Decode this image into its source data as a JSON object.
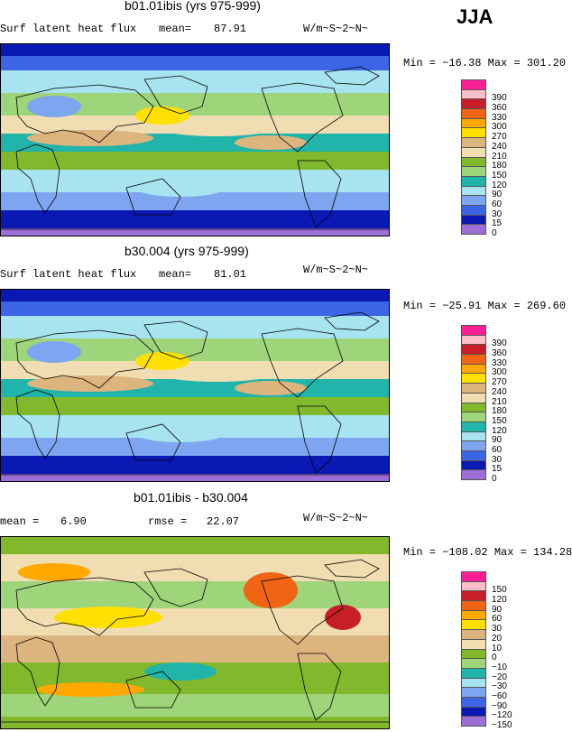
{
  "season_label": "JJA",
  "colors": {
    "abs": [
      "#9b6fd6",
      "#0a18b4",
      "#3c64e6",
      "#7ea6f0",
      "#a8e4f0",
      "#20b4aa",
      "#9ed47a",
      "#82b82c",
      "#f0ddb2",
      "#dcb47e",
      "#ffe000",
      "#ffa800",
      "#f06414",
      "#c81e28",
      "#ffbec8",
      "#ff1e96"
    ],
    "diff": [
      "#9b6fd6",
      "#0a18b4",
      "#3c64e6",
      "#7ea6f0",
      "#a8e4f0",
      "#20b4aa",
      "#9ed47a",
      "#82b82c",
      "#f0ddb2",
      "#dcb47e",
      "#ffe000",
      "#ffa800",
      "#f06414",
      "#c81e28",
      "#ffbec8",
      "#ff1e96"
    ]
  },
  "chart_data": [
    {
      "type": "heatmap",
      "title": "b01.01ibis (yrs 975-999)",
      "variable": "Surf latent heat flux",
      "mean_label": "mean=",
      "mean": "87.91",
      "units": "W/m~S~2~N~",
      "range_text": "Min = −16.38 Max = 301.20",
      "min": -16.38,
      "max": 301.2,
      "colorbar_ticks": [
        "0",
        "15",
        "30",
        "60",
        "90",
        "120",
        "150",
        "180",
        "210",
        "240",
        "270",
        "300",
        "330",
        "360",
        "390"
      ]
    },
    {
      "type": "heatmap",
      "title": "b30.004 (yrs 975-999)",
      "variable": "Surf latent heat flux",
      "mean_label": "mean=",
      "mean": "81.01",
      "units": "W/m~S~2~N~",
      "range_text": "Min = −25.91 Max = 269.60",
      "min": -25.91,
      "max": 269.6,
      "colorbar_ticks": [
        "0",
        "15",
        "30",
        "60",
        "90",
        "120",
        "150",
        "180",
        "210",
        "240",
        "270",
        "300",
        "330",
        "360",
        "390"
      ]
    },
    {
      "type": "heatmap",
      "title": "b01.01ibis - b30.004",
      "mean_label": "mean =",
      "mean": "6.90",
      "rmse_label": "rmse =",
      "rmse": "22.07",
      "units": "W/m~S~2~N~",
      "range_text": "Min = −108.02 Max = 134.28",
      "min": -108.02,
      "max": 134.28,
      "colorbar_ticks": [
        "−150",
        "−120",
        "−90",
        "−60",
        "−30",
        "−20",
        "−10",
        "0",
        "10",
        "20",
        "30",
        "60",
        "90",
        "120",
        "150"
      ]
    }
  ]
}
